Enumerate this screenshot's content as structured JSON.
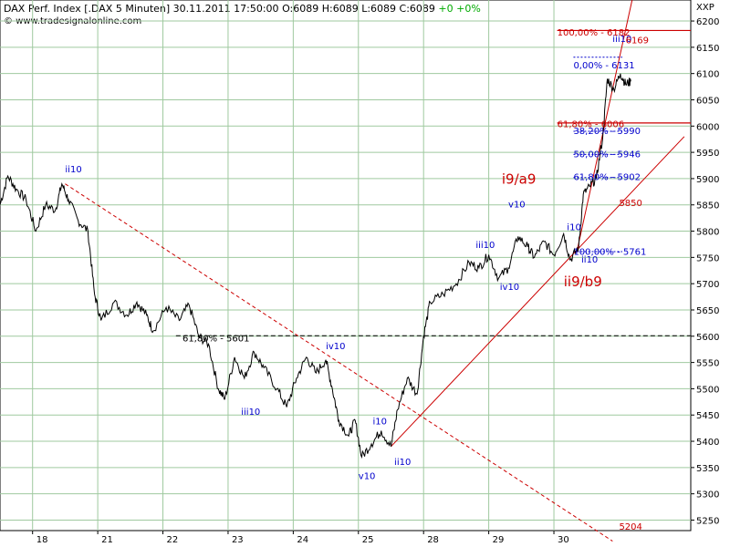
{
  "header": {
    "title_prefix": "DAX Perf. Index [.DAX  5 Minuten]",
    "datetime": "30.11.2011 17:50:00",
    "ohlc": "O:6089 H:6089 L:6089 C:6089",
    "change": "+0 +0%",
    "copyright": "© www.tradesignalonline.com",
    "symbol": "XXP"
  },
  "colors": {
    "price": "#000000",
    "wave_label": "#0000cc",
    "annotation_red": "#cc0000",
    "grid": "#9fc99f",
    "dashed_black": "#000000"
  },
  "chart_data": {
    "type": "line",
    "title": "DAX Perf. Index [.DAX  5 Minuten]",
    "xlabel": "",
    "ylabel": "",
    "y_axis_position": "right",
    "ylim": [
      5230,
      6240
    ],
    "yticks": [
      5250,
      5300,
      5350,
      5400,
      5450,
      5500,
      5550,
      5600,
      5650,
      5700,
      5750,
      5800,
      5850,
      5900,
      5950,
      6000,
      6050,
      6100,
      6150,
      6200
    ],
    "xlim": [
      0,
      10.6
    ],
    "x_categories": [
      "18",
      "21",
      "22",
      "23",
      "24",
      "25",
      "28",
      "29",
      "30"
    ],
    "x_category_positions": [
      0.5,
      1.5,
      2.5,
      3.5,
      4.5,
      5.5,
      6.5,
      7.5,
      8.5
    ],
    "grid": true,
    "series": [
      {
        "points": [
          [
            0,
            5850
          ],
          [
            0.12,
            5905
          ],
          [
            0.25,
            5880
          ],
          [
            0.4,
            5860
          ],
          [
            0.55,
            5800
          ],
          [
            0.7,
            5850
          ],
          [
            0.85,
            5840
          ],
          [
            0.95,
            5890
          ],
          [
            1.05,
            5860
          ],
          [
            1.2,
            5820
          ],
          [
            1.35,
            5800
          ],
          [
            1.45,
            5680
          ],
          [
            1.55,
            5630
          ],
          [
            1.75,
            5665
          ],
          [
            1.95,
            5640
          ],
          [
            2.1,
            5665
          ],
          [
            2.25,
            5640
          ],
          [
            2.35,
            5610
          ],
          [
            2.55,
            5655
          ],
          [
            2.75,
            5630
          ],
          [
            2.9,
            5660
          ],
          [
            3.05,
            5600
          ],
          [
            3.2,
            5585
          ],
          [
            3.35,
            5500
          ],
          [
            3.45,
            5480
          ],
          [
            3.6,
            5560
          ],
          [
            3.75,
            5520
          ],
          [
            3.9,
            5570
          ],
          [
            4.05,
            5540
          ],
          [
            4.25,
            5500
          ],
          [
            4.4,
            5465
          ],
          [
            4.55,
            5520
          ],
          [
            4.7,
            5560
          ],
          [
            4.85,
            5530
          ],
          [
            5.0,
            5555
          ],
          [
            5.1,
            5500
          ],
          [
            5.2,
            5440
          ],
          [
            5.35,
            5410
          ],
          [
            5.45,
            5440
          ],
          [
            5.55,
            5370
          ],
          [
            5.7,
            5395
          ],
          [
            5.85,
            5420
          ],
          [
            6.0,
            5390
          ],
          [
            6.1,
            5460
          ],
          [
            6.25,
            5520
          ],
          [
            6.4,
            5490
          ],
          [
            6.5,
            5600
          ],
          [
            6.6,
            5665
          ],
          [
            6.8,
            5680
          ],
          [
            7.0,
            5700
          ],
          [
            7.2,
            5740
          ],
          [
            7.35,
            5730
          ],
          [
            7.5,
            5755
          ],
          [
            7.65,
            5710
          ],
          [
            7.8,
            5730
          ],
          [
            7.95,
            5790
          ],
          [
            8.1,
            5770
          ],
          [
            8.2,
            5750
          ],
          [
            8.35,
            5780
          ],
          [
            8.5,
            5755
          ],
          [
            8.65,
            5795
          ],
          [
            8.75,
            5745
          ],
          [
            8.88,
            5770
          ],
          [
            8.95,
            5870
          ],
          [
            9.05,
            5885
          ],
          [
            9.15,
            5900
          ],
          [
            9.25,
            5980
          ],
          [
            9.32,
            6090
          ],
          [
            9.42,
            6070
          ],
          [
            9.52,
            6100
          ],
          [
            9.6,
            6080
          ],
          [
            9.68,
            6085
          ]
        ]
      }
    ],
    "wave_labels": [
      {
        "text": "ii10",
        "x": 1.0,
        "y": 5912
      },
      {
        "text": "iii10",
        "x": 3.7,
        "y": 5450
      },
      {
        "text": "iv10",
        "x": 5.0,
        "y": 5575
      },
      {
        "text": "v10",
        "x": 5.5,
        "y": 5328
      },
      {
        "text": "i10",
        "x": 5.72,
        "y": 5432
      },
      {
        "text": "ii10",
        "x": 6.05,
        "y": 5355
      },
      {
        "text": "iii10",
        "x": 7.3,
        "y": 5768
      },
      {
        "text": "iv10",
        "x": 7.67,
        "y": 5688
      },
      {
        "text": "v10",
        "x": 7.8,
        "y": 5845
      },
      {
        "text": "i10",
        "x": 8.7,
        "y": 5802
      },
      {
        "text": "ii10",
        "x": 8.92,
        "y": 5740
      },
      {
        "text": "iii10",
        "x": 9.4,
        "y": 6160
      }
    ],
    "big_labels": [
      {
        "text": "i9/a9",
        "x": 7.7,
        "y": 5890
      },
      {
        "text": "ii9/b9",
        "x": 8.65,
        "y": 5695
      }
    ],
    "annotations_blue": [
      {
        "text": "0,00% - 6131",
        "x": 8.8,
        "y": 6110
      },
      {
        "text": "38,20% - 5990",
        "x": 8.8,
        "y": 5985
      },
      {
        "text": "50,00% - 5946",
        "x": 8.8,
        "y": 5941
      },
      {
        "text": "61,80% - 5902",
        "x": 8.8,
        "y": 5897
      },
      {
        "text": "100,00% - 5761",
        "x": 8.8,
        "y": 5755
      }
    ],
    "annotations_red": [
      {
        "text": "100,00% - 6182",
        "x": 8.55,
        "y": 6172
      },
      {
        "text": "61,80% - 6006",
        "x": 8.55,
        "y": 5998
      },
      {
        "text": "5850",
        "x": 9.5,
        "y": 5848
      },
      {
        "text": "5204",
        "x": 9.5,
        "y": 5232
      },
      {
        "text": "6169",
        "x": 9.6,
        "y": 6158
      }
    ],
    "annotations_black": [
      {
        "text": "61,80% - 5601",
        "x": 2.8,
        "y": 5590
      }
    ],
    "levels": [
      {
        "type": "dashed_black",
        "y": 5601,
        "x_from": 2.7,
        "x_to": 10.6
      },
      {
        "type": "solid_red",
        "y": 6182,
        "x_from": 8.55,
        "x_to": 10.6
      },
      {
        "type": "solid_red",
        "y": 6006,
        "x_from": 8.55,
        "x_to": 10.6
      },
      {
        "type": "dotted_blue",
        "y": 6131,
        "x_from": 8.8,
        "x_to": 9.55
      },
      {
        "type": "dotted_blue",
        "y": 5990,
        "x_from": 8.8,
        "x_to": 9.55
      },
      {
        "type": "dotted_blue",
        "y": 5946,
        "x_from": 8.8,
        "x_to": 9.55
      },
      {
        "type": "dotted_blue",
        "y": 5902,
        "x_from": 8.8,
        "x_to": 9.55
      },
      {
        "type": "dotted_blue",
        "y": 5761,
        "x_from": 8.8,
        "x_to": 9.55
      }
    ],
    "trendlines": [
      {
        "type": "dashed_red",
        "x1": 1.0,
        "y1": 5890,
        "x2": 9.4,
        "y2": 5210
      },
      {
        "type": "solid_red",
        "x1": 6.0,
        "y1": 5390,
        "x2": 10.5,
        "y2": 5980
      },
      {
        "type": "solid_red",
        "x1": 8.85,
        "y1": 5760,
        "x2": 9.7,
        "y2": 6240
      }
    ]
  }
}
